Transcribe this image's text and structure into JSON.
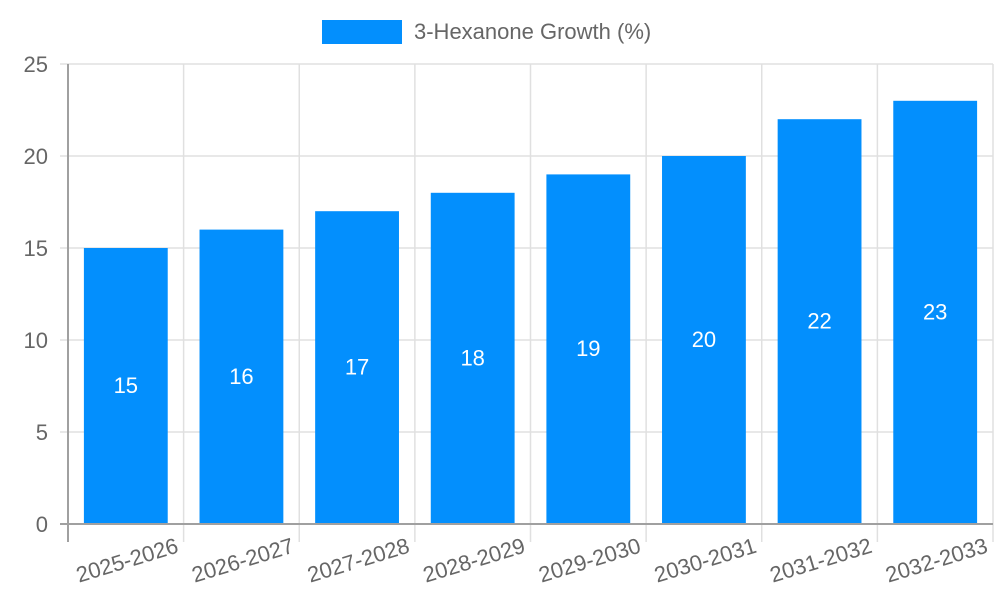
{
  "legend": {
    "label": "3-Hexanone Growth (%)",
    "color": "#038ffd"
  },
  "colors": {
    "bar": "#038ffd",
    "grid": "#e0e0e0",
    "axis": "#a0a0a0",
    "tick_text": "#666666",
    "data_label": "#ffffff"
  },
  "chart_data": {
    "type": "bar",
    "title": "",
    "xlabel": "",
    "ylabel": "",
    "categories": [
      "2025-2026",
      "2026-2027",
      "2027-2028",
      "2028-2029",
      "2029-2030",
      "2030-2031",
      "2031-2032",
      "2032-2033"
    ],
    "series": [
      {
        "name": "3-Hexanone Growth (%)",
        "values": [
          15,
          16,
          17,
          18,
          19,
          20,
          22,
          23
        ]
      }
    ],
    "ylim": [
      0,
      25
    ],
    "yticks": [
      0,
      5,
      10,
      15,
      20,
      25
    ],
    "grid": true,
    "legend_position": "top",
    "data_labels": true
  }
}
